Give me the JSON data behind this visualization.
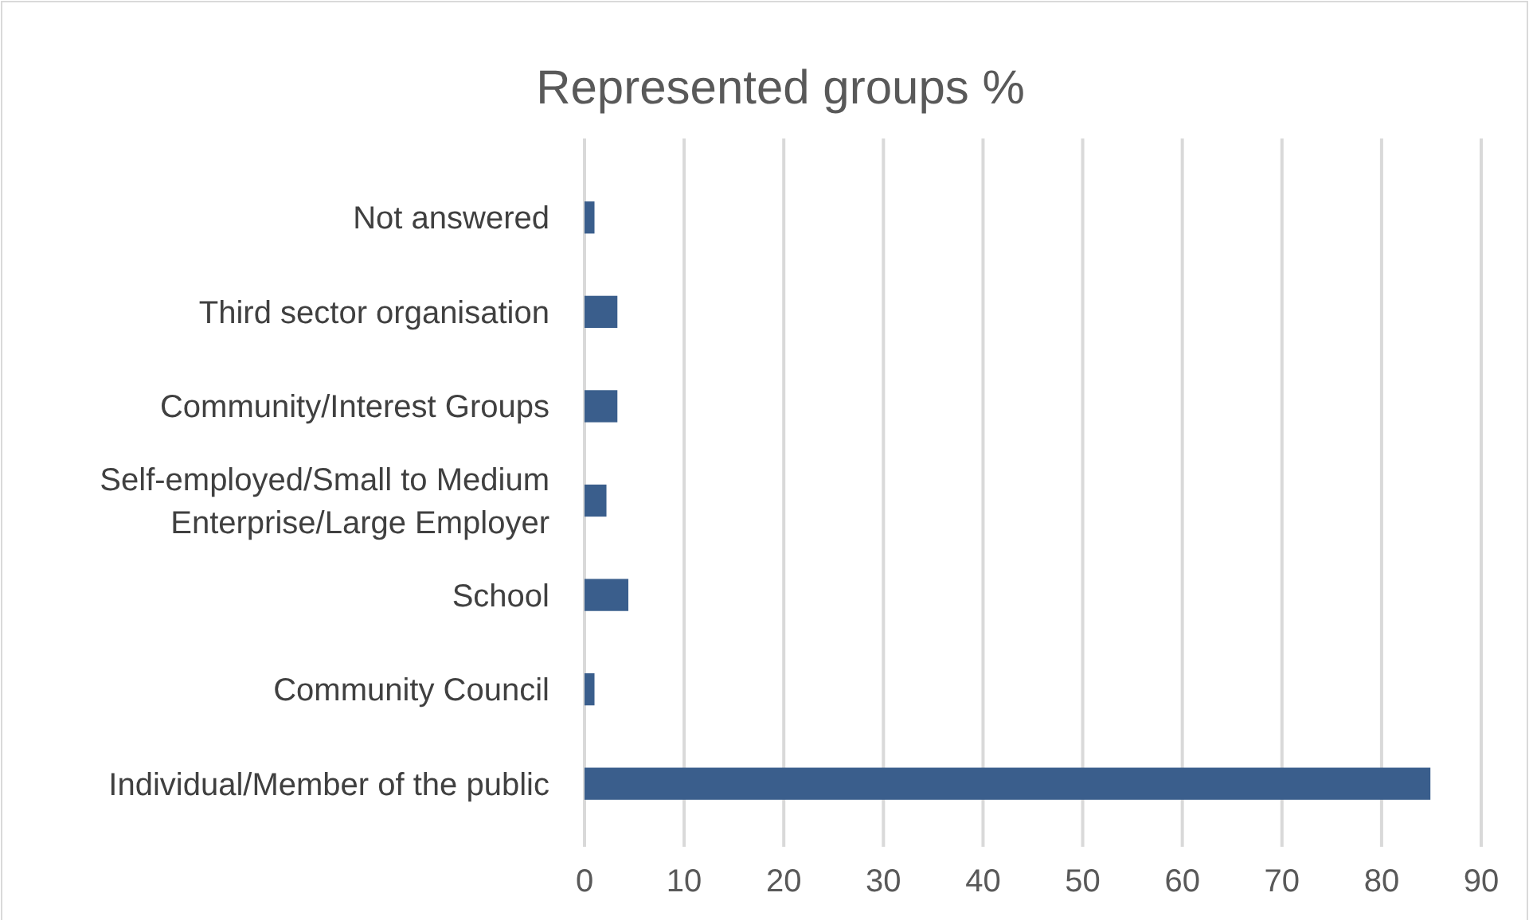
{
  "chart_data": {
    "type": "bar",
    "orientation": "horizontal",
    "title": "Represented groups %",
    "categories": [
      "Not answered",
      "Third sector organisation",
      "Community/Interest Groups",
      "Self-employed/Small to Medium Enterprise/Large Employer",
      "School",
      "Community Council",
      "Individual/Member of the public"
    ],
    "values": [
      1.0,
      3.3,
      3.3,
      2.2,
      4.4,
      1.0,
      84.9
    ],
    "color": "#3a5e8c",
    "xlim": [
      0,
      90
    ],
    "xticks": [
      0,
      10,
      20,
      30,
      40,
      50,
      60,
      70,
      80,
      90
    ],
    "grid": "x"
  }
}
